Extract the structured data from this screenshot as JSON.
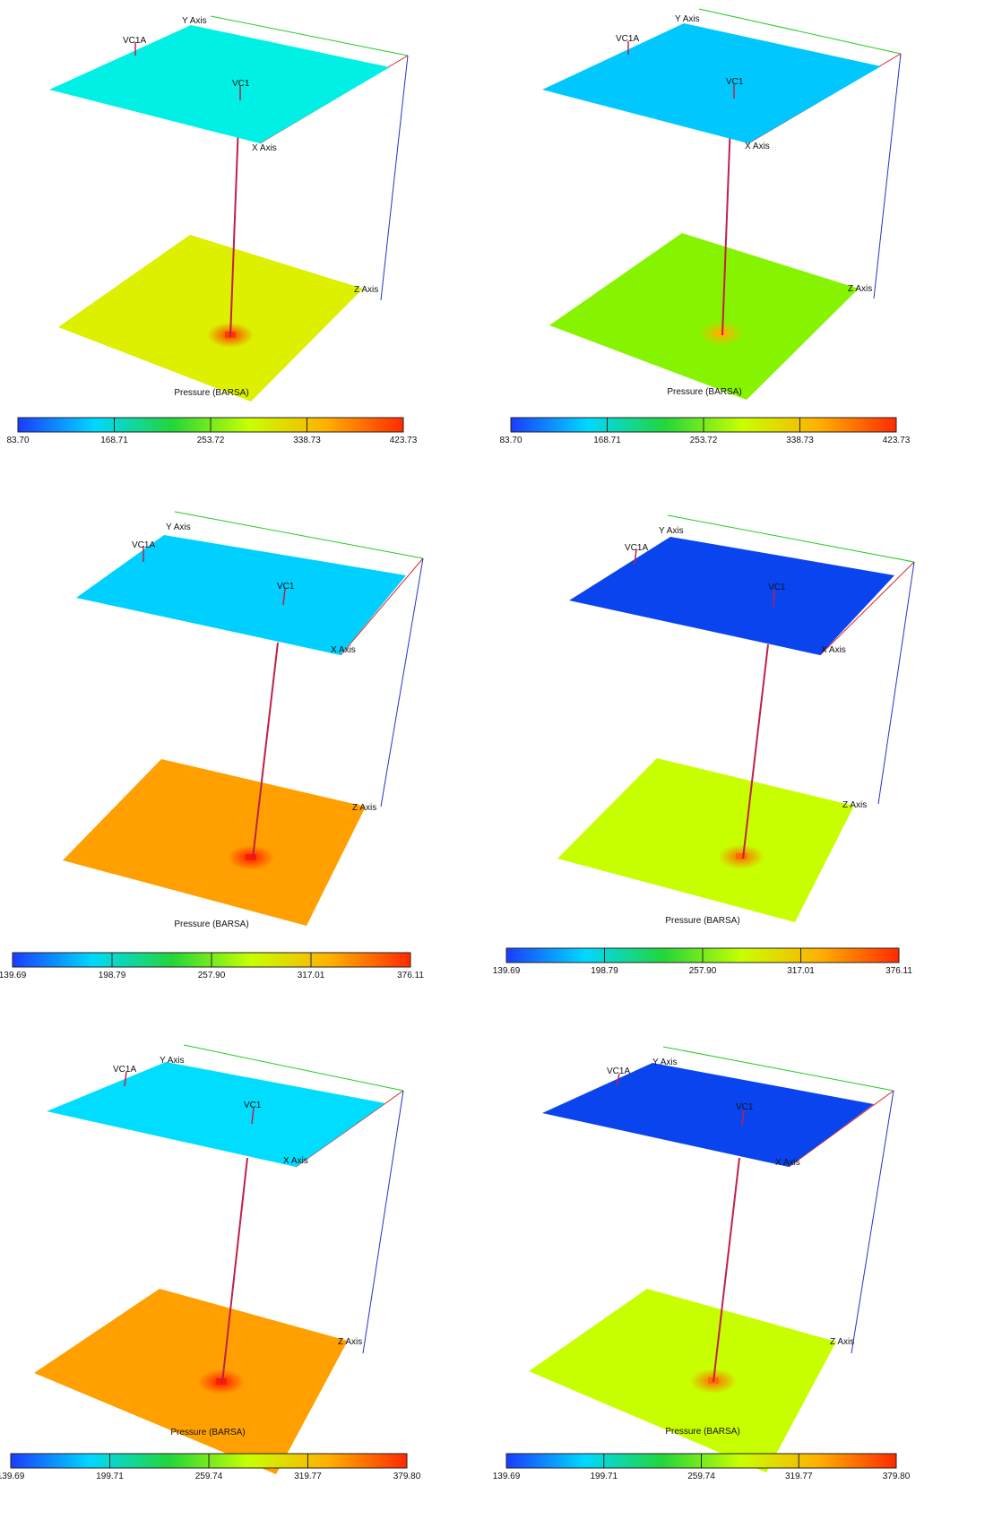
{
  "common": {
    "axis_labels": {
      "x": "X Axis",
      "y": "Y Axis",
      "z": "Z Axis"
    },
    "wells": [
      "VC1A",
      "VC1"
    ],
    "colorbar_title": "Pressure (BARSA)",
    "colormap": [
      "#1a3cff",
      "#00d8ff",
      "#22d63a",
      "#c8ff00",
      "#ffb000",
      "#ff2a00"
    ],
    "axis_colors": {
      "x": "#dd2222",
      "y": "#22cc22",
      "z": "#2233cc"
    },
    "well_color": "#c0204a"
  },
  "panels": [
    {
      "id": "r1c1",
      "top_layer_color": "#00f0e6",
      "bottom_layer_color": "#dcf000",
      "hotspot_color": "#ff3a00",
      "colorbar_ticks": [
        "83.70",
        "168.71",
        "253.72",
        "338.73",
        "423.73"
      ]
    },
    {
      "id": "r1c2",
      "top_layer_color": "#00c8ff",
      "bottom_layer_color": "#86f400",
      "hotspot_color": "#ffb000",
      "colorbar_ticks": [
        "83.70",
        "168.71",
        "253.72",
        "338.73",
        "423.73"
      ]
    },
    {
      "id": "r2c1",
      "top_layer_color": "#00d0ff",
      "bottom_layer_color": "#ffa000",
      "hotspot_color": "#ff1a00",
      "colorbar_ticks": [
        "139.69",
        "198.79",
        "257.90",
        "317.01",
        "376.11"
      ]
    },
    {
      "id": "r2c2",
      "top_layer_color": "#0a44ee",
      "bottom_layer_color": "#c8ff00",
      "hotspot_color": "#ff6a00",
      "colorbar_ticks": [
        "139.69",
        "198.79",
        "257.90",
        "317.01",
        "376.11"
      ]
    },
    {
      "id": "r3c1",
      "top_layer_color": "#00ddff",
      "bottom_layer_color": "#ffa000",
      "hotspot_color": "#ff1a00",
      "colorbar_ticks": [
        "139.69",
        "199.71",
        "259.74",
        "319.77",
        "379.80"
      ]
    },
    {
      "id": "r3c2",
      "top_layer_color": "#0a44ee",
      "bottom_layer_color": "#c8ff00",
      "hotspot_color": "#ff6a00",
      "colorbar_ticks": [
        "139.69",
        "199.71",
        "259.74",
        "319.77",
        "379.80"
      ]
    }
  ]
}
